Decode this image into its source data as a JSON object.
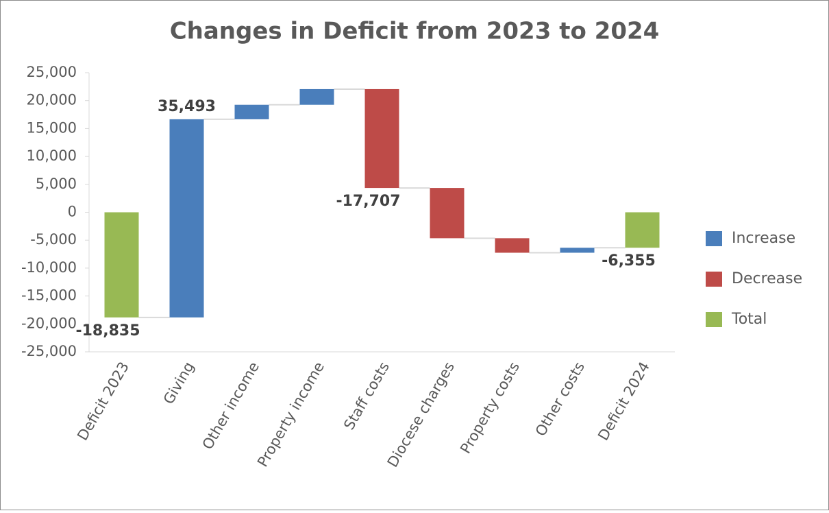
{
  "chart_data": {
    "type": "waterfall",
    "title": "Changes in Deficit from 2023 to 2024",
    "categories": [
      "Deficit 2023",
      "Giving",
      "Other income",
      "Property income",
      "Staff costs",
      "Diocese charges",
      "Property costs",
      "Other costs",
      "Deficit 2024"
    ],
    "values": [
      -18835,
      35493,
      2600,
      2800,
      -17707,
      -9000,
      -2600,
      894,
      -6355
    ],
    "value_labels": [
      "-18,835",
      "35,493",
      null,
      null,
      "-17,707",
      null,
      null,
      null,
      "-6,355"
    ],
    "is_total": [
      true,
      false,
      false,
      false,
      false,
      false,
      false,
      false,
      true
    ],
    "legend": [
      {
        "name": "Increase",
        "color": "#4a7ebb"
      },
      {
        "name": "Decrease",
        "color": "#be4b48"
      },
      {
        "name": "Total",
        "color": "#98b954"
      }
    ],
    "ylim": [
      -25000,
      25000
    ],
    "yticks": [
      {
        "value": 25000,
        "label": "25,000"
      },
      {
        "value": 20000,
        "label": "20,000"
      },
      {
        "value": 15000,
        "label": "15,000"
      },
      {
        "value": 10000,
        "label": "10,000"
      },
      {
        "value": 5000,
        "label": "5,000"
      },
      0,
      {
        "value": -5000,
        "label": "-5,000"
      },
      {
        "value": -10000,
        "label": "-10,000"
      },
      {
        "value": -15000,
        "label": "-15,000"
      },
      {
        "value": -20000,
        "label": "-20,000"
      },
      {
        "value": -25000,
        "label": "-25,000"
      }
    ]
  }
}
